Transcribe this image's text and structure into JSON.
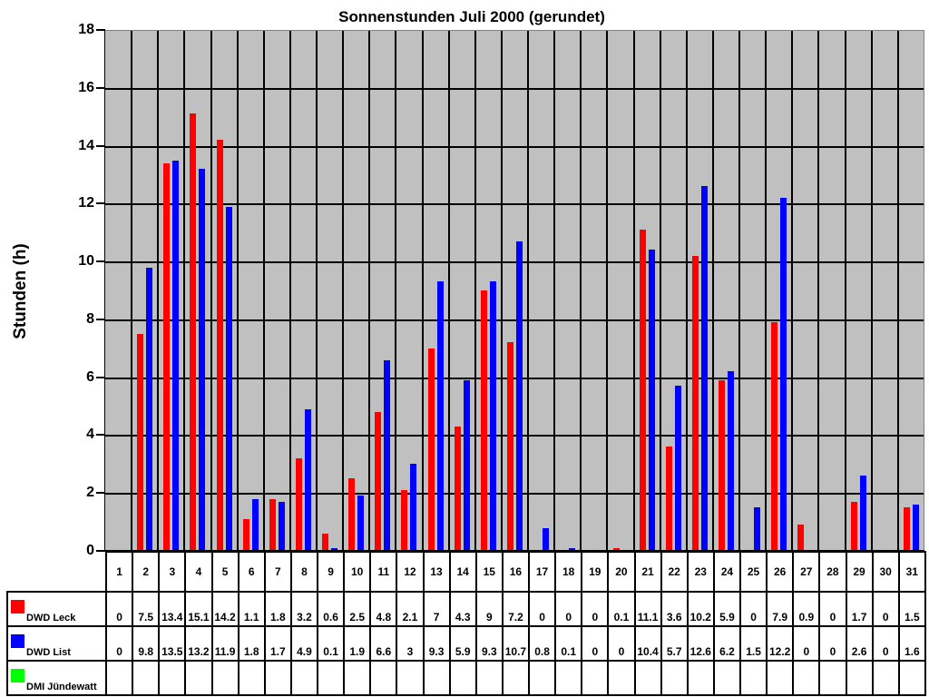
{
  "chart_data": {
    "type": "bar",
    "title": "Sonnenstunden Juli 2000 (gerundet)",
    "xlabel": "",
    "ylabel": "Stunden (h)",
    "ylim": [
      0,
      18
    ],
    "yticks": [
      0,
      2,
      4,
      6,
      8,
      10,
      12,
      14,
      16,
      18
    ],
    "grid": true,
    "legend_position": "data-table",
    "categories": [
      "1",
      "2",
      "3",
      "4",
      "5",
      "6",
      "7",
      "8",
      "9",
      "10",
      "11",
      "12",
      "13",
      "14",
      "15",
      "16",
      "17",
      "18",
      "19",
      "20",
      "21",
      "22",
      "23",
      "24",
      "25",
      "26",
      "27",
      "28",
      "29",
      "30",
      "31"
    ],
    "series": [
      {
        "name": "DWD Leck",
        "color": "#ff0000",
        "values": [
          0,
          7.5,
          13.4,
          15.1,
          14.2,
          1.1,
          1.8,
          3.2,
          0.6,
          2.5,
          4.8,
          2.1,
          7,
          4.3,
          9,
          7.2,
          0,
          0,
          0,
          0.1,
          11.1,
          3.6,
          10.2,
          5.9,
          0,
          7.9,
          0.9,
          0,
          1.7,
          0,
          1.5
        ]
      },
      {
        "name": "DWD List",
        "color": "#0000ff",
        "values": [
          0,
          9.8,
          13.5,
          13.2,
          11.9,
          1.8,
          1.7,
          4.9,
          0.1,
          1.9,
          6.6,
          3,
          9.3,
          5.9,
          9.3,
          10.7,
          0.8,
          0.1,
          0,
          0,
          10.4,
          5.7,
          12.6,
          6.2,
          1.5,
          12.2,
          0,
          0,
          2.6,
          0,
          1.6
        ]
      },
      {
        "name": "DMI Jündewatt",
        "color": "#00ff00",
        "values": [
          null,
          null,
          null,
          null,
          null,
          null,
          null,
          null,
          null,
          null,
          null,
          null,
          null,
          null,
          null,
          null,
          null,
          null,
          null,
          null,
          null,
          null,
          null,
          null,
          null,
          null,
          null,
          null,
          null,
          null,
          null
        ]
      }
    ],
    "table_rows": [
      {
        "label": "DWD Leck",
        "cells": [
          "0",
          "7.5",
          "13.4",
          "15.1",
          "14.2",
          "1.1",
          "1.8",
          "3.2",
          "0.6",
          "2.5",
          "4.8",
          "2.1",
          "7",
          "4.3",
          "9",
          "7.2",
          "0",
          "0",
          "0",
          "0.1",
          "11.1",
          "3.6",
          "10.2",
          "5.9",
          "0",
          "7.9",
          "0.9",
          "0",
          "1.7",
          "0",
          "1.5"
        ]
      },
      {
        "label": "DWD List",
        "cells": [
          "0",
          "9.8",
          "13.5",
          "13.2",
          "11.9",
          "1.8",
          "1.7",
          "4.9",
          "0.1",
          "1.9",
          "6.6",
          "3",
          "9.3",
          "5.9",
          "9.3",
          "10.7",
          "0.8",
          "0.1",
          "0",
          "0",
          "10.4",
          "5.7",
          "12.6",
          "6.2",
          "1.5",
          "12.2",
          "0",
          "0",
          "2.6",
          "0",
          "1.6"
        ]
      },
      {
        "label": "DMI Jündewatt",
        "cells": [
          "",
          "",
          "",
          "",
          "",
          "",
          "",
          "",
          "",
          "",
          "",
          "",
          "",
          "",
          "",
          "",
          "",
          "",
          "",
          "",
          "",
          "",
          "",
          "",
          "",
          "",
          "",
          "",
          "",
          "",
          ""
        ]
      }
    ]
  },
  "colors": {
    "plot_background": "#c0c0c0",
    "grid": "#000000"
  }
}
